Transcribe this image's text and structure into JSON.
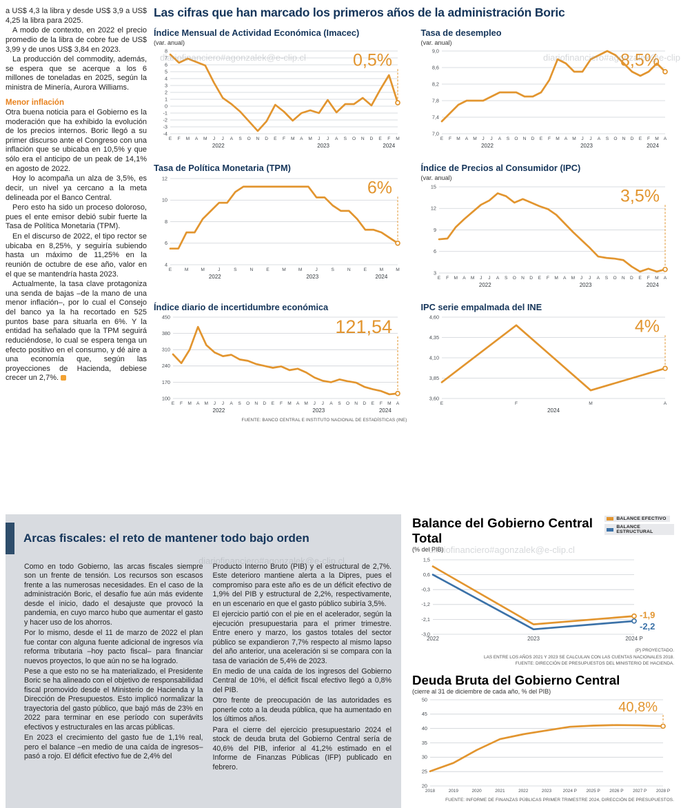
{
  "page": {
    "main_title": "Las cifras que han marcado los primeros años de la administración Boric",
    "watermark": "diariofinanciero#agonzalek@e-clip.cl"
  },
  "article": {
    "paragraphs": [
      "a US$ 4,3 la libra y desde US$ 3,9 a US$ 4,25 la libra para 2025.",
      "A modo de contexto, en 2022 el precio promedio de la libra de cobre fue de US$ 3,99 y de unos US$ 3,84 en 2023.",
      "La producción del commodity, además, se espera que se acerque a los 6 millones de toneladas en 2025, según la ministra de Minería, Aurora Williams."
    ],
    "subhead": "Menor inflación",
    "paragraphs2": [
      "Otra buena noticia para el Gobierno es la moderación que ha exhibido la evolución de los precios internos. Boric llegó a su primer discurso ante el Congreso con una inflación que se ubicaba en 10,5% y que sólo era el anticipo de un peak de 14,1% en agosto de 2022.",
      "Hoy lo acompaña un alza de 3,5%, es decir, un nivel ya cercano a la meta delineada por el Banco Central.",
      "Pero esto ha sido un proceso doloroso, pues el ente emisor debió subir fuerte la Tasa de Política Monetaria (TPM).",
      "En el discurso de 2022, el tipo rector se ubicaba en 8,25%, y seguiría subiendo hasta un máximo de 11,25% en la reunión de octubre de ese año, valor en el que se mantendría hasta 2023.",
      "Actualmente, la tasa clave protagoniza una senda de bajas –de la mano de una menor inflación–, por lo cual el Consejo del banco ya la ha recortado en 525 puntos base para situarla en 6%. Y la entidad ha señalado que la TPM seguirá reduciéndose, lo cual se espera tenga un efecto positivo en el consumo, y dé aire a una economía que, según las proyecciones de Hacienda, debiese crecer un 2,7%."
    ]
  },
  "fiscal": {
    "title": "Arcas fiscales: el reto de mantener todo bajo orden",
    "col1": [
      "Como en todo Gobierno, las arcas fiscales siempre son un frente de tensión. Los recursos son escasos frente a las numerosas necesidades. En el caso de la administración Boric, el desafío fue aún más evidente desde el inicio, dado el desajuste que provocó la pandemia, en cuyo marco hubo que aumentar el gasto y hacer uso de los ahorros.",
      "Por lo mismo, desde el 11 de marzo de 2022 el plan fue contar con alguna fuente adicional de ingresos vía reforma tributaria –hoy pacto fiscal– para financiar nuevos proyectos, lo que aún no se ha logrado.",
      "Pese a que esto no se ha materializado, el Presidente Boric se ha alineado con el objetivo de responsabilidad fiscal promovido desde el Ministerio de Hacienda y la Dirección de Presupuestos. Esto implicó normalizar la trayectoria del gasto público, que bajó más de 23% en 2022 para terminar en ese período con superávits efectivos y estructurales en las arcas públicas.",
      "En 2023 el crecimiento del gasto fue de 1,1% real, pero el balance –en medio de una caída de ingresos– pasó a rojo. El déficit efectivo fue de 2,4% del"
    ],
    "col2": [
      "Producto Interno Bruto (PIB) y el estructural de 2,7%. Este deterioro mantiene alerta a la Dipres, pues el compromiso para este año es de un déficit efectivo de 1,9% del PIB y estructural de 2,2%, respectivamente, en un escenario en que el gasto público subiría 3,5%.",
      "El ejercicio partió con el pie en el acelerador, según la ejecución presupuestaria para el primer trimestre. Entre enero y marzo, los gastos totales del sector público se expandieron 7,7% respecto al mismo lapso del año anterior, una aceleración si se compara con la tasa de variación de 5,4% de 2023.",
      "En medio de una caída de los ingresos del Gobierno Central de 10%, el déficit fiscal efectivo llegó a 0,8% del PIB.",
      "Otro frente de preocupación de las autoridades es ponerle coto a la deuda pública, que ha aumentado en los últimos años.",
      "Para el cierre del ejercicio presupuestario 2024 el stock de deuda bruta del Gobierno Central sería de 40,6% del PIB, inferior al 41,2% estimado en el Informe de Finanzas Públicas (IFP) publicado en febrero."
    ]
  },
  "chart_data": [
    {
      "type": "line",
      "title": "Índice Mensual de Actividad Económica (Imacec)",
      "subtitle": "(var. anual)",
      "ymin": -4,
      "ymax": 8,
      "yticks": [
        8,
        7,
        6,
        5,
        4,
        3,
        2,
        1,
        0,
        -1,
        -2,
        -3,
        -4
      ],
      "ytick_labels": [
        "8",
        "7",
        "6",
        "5",
        "4",
        "3",
        "2",
        "1",
        "0",
        "-1",
        "-2",
        "-3",
        "-4"
      ],
      "x_labels": [
        "E",
        "F",
        "M",
        "A",
        "M",
        "J",
        "J",
        "A",
        "S",
        "O",
        "N",
        "D",
        "E",
        "F",
        "M",
        "A",
        "M",
        "J",
        "J",
        "A",
        "S",
        "O",
        "N",
        "D",
        "E",
        "F",
        "M"
      ],
      "year_groups": [
        {
          "label": "2022",
          "start": 0,
          "end": 11
        },
        {
          "label": "2023",
          "start": 12,
          "end": 23
        },
        {
          "label": "2024",
          "start": 24,
          "end": 26
        }
      ],
      "series": [
        {
          "name": "Imacec",
          "color": "#E2952F",
          "values": [
            7.5,
            6.3,
            6.9,
            6.4,
            5.9,
            3.4,
            1.2,
            0.3,
            -0.8,
            -2.2,
            -3.6,
            -2.2,
            0.2,
            -0.8,
            -2.1,
            -1.0,
            -0.6,
            -1.0,
            0.9,
            -0.9,
            0.3,
            0.3,
            1.2,
            0.1,
            2.4,
            4.5,
            0.5
          ],
          "callout": "0,5%",
          "callout_pos": "top"
        }
      ]
    },
    {
      "type": "line",
      "title": "Tasa de desempleo",
      "subtitle": "(var. anual)",
      "ymin": 7.0,
      "ymax": 9.0,
      "yticks": [
        9.0,
        8.6,
        8.2,
        7.8,
        7.4,
        7.0
      ],
      "ytick_labels": [
        "9,0",
        "8,6",
        "8,2",
        "7,8",
        "7,4",
        "7,0"
      ],
      "x_labels": [
        "E",
        "F",
        "M",
        "A",
        "M",
        "J",
        "J",
        "A",
        "S",
        "O",
        "N",
        "D",
        "E",
        "F",
        "M",
        "A",
        "M",
        "J",
        "J",
        "A",
        "S",
        "O",
        "N",
        "D",
        "E",
        "F",
        "M",
        "A"
      ],
      "year_groups": [
        {
          "label": "2022",
          "start": 0,
          "end": 11
        },
        {
          "label": "2023",
          "start": 12,
          "end": 23
        },
        {
          "label": "2024",
          "start": 24,
          "end": 27
        }
      ],
      "series": [
        {
          "name": "Tasa de desempleo",
          "color": "#E2952F",
          "values": [
            7.3,
            7.5,
            7.7,
            7.8,
            7.8,
            7.8,
            7.9,
            8.0,
            8.0,
            8.0,
            7.9,
            7.9,
            8.0,
            8.3,
            8.8,
            8.7,
            8.5,
            8.5,
            8.8,
            8.9,
            9.0,
            8.9,
            8.7,
            8.5,
            8.4,
            8.5,
            8.7,
            8.5
          ],
          "callout": "8,5%",
          "callout_pos": "top"
        }
      ]
    },
    {
      "type": "line",
      "title": "Tasa de Política Monetaria (TPM)",
      "subtitle": "",
      "ymin": 4,
      "ymax": 12,
      "yticks": [
        12,
        10,
        8,
        6,
        4
      ],
      "ytick_labels": [
        "12",
        "10",
        "8",
        "6",
        "4"
      ],
      "x_labels": [
        "E",
        "",
        "M",
        "",
        "M",
        "",
        "J",
        "",
        "S",
        "",
        "N",
        "",
        "E",
        "",
        "M",
        "",
        "M",
        "",
        "J",
        "",
        "S",
        "",
        "N",
        "",
        "E",
        "",
        "M",
        "",
        "M"
      ],
      "year_groups": [
        {
          "label": "2022",
          "start": 0,
          "end": 11
        },
        {
          "label": "2023",
          "start": 12,
          "end": 23
        },
        {
          "label": "2024",
          "start": 24,
          "end": 28
        }
      ],
      "series": [
        {
          "name": "TPM",
          "color": "#E2952F",
          "values": [
            5.5,
            5.5,
            7.0,
            7.0,
            8.25,
            9.0,
            9.75,
            9.75,
            10.75,
            11.25,
            11.25,
            11.25,
            11.25,
            11.25,
            11.25,
            11.25,
            11.25,
            11.25,
            10.25,
            10.25,
            9.5,
            9.0,
            9.0,
            8.25,
            7.25,
            7.25,
            7.0,
            6.5,
            6.0
          ],
          "callout": "6%",
          "callout_pos": "top"
        }
      ]
    },
    {
      "type": "line",
      "title": "Índice de Precios al Consumidor (IPC)",
      "subtitle": "(var. anual)",
      "ymin": 3,
      "ymax": 15,
      "yticks": [
        15,
        12,
        9,
        6,
        3
      ],
      "ytick_labels": [
        "15",
        "12",
        "9",
        "6",
        "3"
      ],
      "x_labels": [
        "E",
        "F",
        "M",
        "A",
        "M",
        "J",
        "J",
        "A",
        "S",
        "O",
        "N",
        "D",
        "E",
        "F",
        "M",
        "A",
        "M",
        "J",
        "J",
        "A",
        "S",
        "O",
        "N",
        "D",
        "E",
        "F",
        "M",
        "A"
      ],
      "year_groups": [
        {
          "label": "2022",
          "start": 0,
          "end": 11
        },
        {
          "label": "2023",
          "start": 12,
          "end": 23
        },
        {
          "label": "2024",
          "start": 24,
          "end": 27
        }
      ],
      "series": [
        {
          "name": "IPC",
          "color": "#E2952F",
          "values": [
            7.7,
            7.8,
            9.4,
            10.5,
            11.5,
            12.5,
            13.1,
            14.1,
            13.7,
            12.8,
            13.3,
            12.8,
            12.3,
            11.9,
            11.1,
            9.9,
            8.7,
            7.6,
            6.5,
            5.3,
            5.1,
            5.0,
            4.8,
            3.9,
            3.2,
            3.6,
            3.2,
            3.5
          ],
          "callout": "3,5%",
          "callout_pos": "top"
        }
      ]
    },
    {
      "type": "line",
      "title": "Índice diario de incertidumbre económica",
      "subtitle": "",
      "ymin": 100,
      "ymax": 450,
      "yticks": [
        450,
        380,
        310,
        240,
        170,
        100
      ],
      "ytick_labels": [
        "450",
        "380",
        "310",
        "240",
        "170",
        "100"
      ],
      "x_labels": [
        "E",
        "F",
        "M",
        "A",
        "M",
        "J",
        "J",
        "A",
        "S",
        "O",
        "N",
        "D",
        "E",
        "F",
        "M",
        "A",
        "M",
        "J",
        "J",
        "A",
        "S",
        "O",
        "N",
        "D",
        "E",
        "F",
        "M",
        "A"
      ],
      "year_groups": [
        {
          "label": "2022",
          "start": 0,
          "end": 11
        },
        {
          "label": "2023",
          "start": 12,
          "end": 23
        },
        {
          "label": "2024",
          "start": 24,
          "end": 27
        }
      ],
      "series": [
        {
          "name": "Incertidumbre económica",
          "color": "#E2952F",
          "values": [
            290,
            252,
            310,
            408,
            330,
            298,
            282,
            288,
            268,
            262,
            248,
            240,
            232,
            238,
            222,
            228,
            212,
            190,
            176,
            170,
            182,
            174,
            168,
            150,
            140,
            132,
            118,
            121.54
          ],
          "callout": "121,54",
          "callout_pos": "top"
        }
      ],
      "source": "FUENTE: BANCO CENTRAL E INSTITUTO NACIONAL DE ESTADÍSTICAS (INE)"
    },
    {
      "type": "line",
      "title": "IPC serie empalmada del INE",
      "subtitle": "",
      "ymin": 3.6,
      "ymax": 4.6,
      "yticks": [
        4.6,
        4.35,
        4.1,
        3.85,
        3.6
      ],
      "ytick_labels": [
        "4,60",
        "4,35",
        "4,10",
        "3,85",
        "3,60"
      ],
      "x_labels": [
        "E",
        "F",
        "M",
        "A"
      ],
      "year_groups": [
        {
          "label": "2024",
          "start": 0,
          "end": 3
        }
      ],
      "series": [
        {
          "name": "IPC serie empalmada",
          "color": "#E2952F",
          "values": [
            3.8,
            4.5,
            3.7,
            3.97
          ],
          "callout": "4%",
          "callout_pos": "top"
        }
      ]
    },
    {
      "type": "line",
      "title": "Balance del Gobierno Central Total",
      "subtitle": "(% del PIB)",
      "ymin": -3.0,
      "ymax": 1.5,
      "yticks": [
        1.5,
        0.6,
        -0.3,
        -1.2,
        -2.1,
        -3.0
      ],
      "ytick_labels": [
        "1,5",
        "0,6",
        "-0,3",
        "-1,2",
        "-2,1",
        "-3,0"
      ],
      "x_labels": [
        "2022",
        "2023",
        "2024 P"
      ],
      "year_groups": [],
      "legend": [
        {
          "label": "BALANCE EFECTIVO",
          "color": "#E2952F"
        },
        {
          "label": "BALANCE ESTRUCTURAL",
          "color": "#3C72A8"
        }
      ],
      "series": [
        {
          "name": "Balance estructural",
          "color": "#3C72A8",
          "values": [
            0.6,
            -2.7,
            -2.2
          ],
          "callout": "-2,2",
          "callout_pos": "end",
          "callout_dy": 12
        },
        {
          "name": "Balance efectivo",
          "color": "#E2952F",
          "values": [
            1.1,
            -2.4,
            -1.9
          ],
          "callout": "-1,9",
          "callout_pos": "end",
          "callout_dy": 3
        }
      ],
      "notes": [
        "(P) PROYECTADO.",
        "LAS ENTRE LOS AÑOS 2021 Y 2023 SE CALCULAN  CON LAS CUENTAS NACIONALES 2018.",
        "FUENTE: DIRECCIÓN DE PRESUPUESTOS DEL MINISTERIO DE HACIENDA."
      ]
    },
    {
      "type": "line",
      "title": "Deuda Bruta del Gobierno Central",
      "subtitle": "(cierre al 31 de diciembre de cada año, % del PIB)",
      "ymin": 20,
      "ymax": 50,
      "yticks": [
        50,
        45,
        40,
        35,
        30,
        25,
        20
      ],
      "ytick_labels": [
        "50",
        "45",
        "40",
        "35",
        "30",
        "25",
        "20"
      ],
      "x_labels": [
        "2018",
        "2019",
        "2020",
        "2021",
        "2022",
        "2023",
        "2024 P",
        "2025 P",
        "2026 P",
        "2027 P",
        "2028 P"
      ],
      "year_groups": [],
      "series": [
        {
          "name": "Deuda bruta",
          "color": "#E2952F",
          "values": [
            25.1,
            28.0,
            32.5,
            36.3,
            38.0,
            39.3,
            40.6,
            41.0,
            41.2,
            41.1,
            40.8
          ],
          "callout": "40,8%",
          "callout_pos": "top"
        }
      ],
      "source": "FUENTE: INFORME DE FINANZAS PÚBLICAS PRIMER TRIMESTRE 2024, DIRECCIÓN DE PRESUPUESTOS."
    }
  ]
}
